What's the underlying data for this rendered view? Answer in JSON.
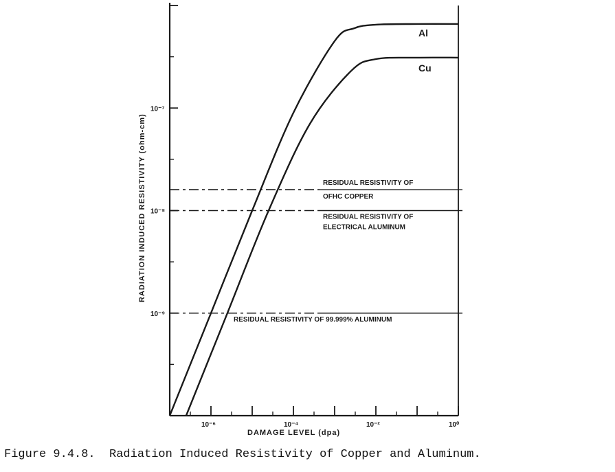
{
  "caption": "Figure 9.4.8.  Radiation Induced Resistivity of Copper and Aluminum.",
  "chart_data": {
    "type": "line",
    "xlabel": "DAMAGE LEVEL (dpa)",
    "ylabel": "RADIATION INDUCED RESISTIVITY (ohm-cm)",
    "x_scale": "log",
    "y_scale": "log",
    "xlim": [
      1e-07,
      1
    ],
    "ylim": [
      1e-10,
      1e-06
    ],
    "x_tick_labels": [
      {
        "value": 1e-06,
        "label": "10⁻⁶"
      },
      {
        "value": 0.0001,
        "label": "10⁻⁴"
      },
      {
        "value": 0.01,
        "label": "10⁻²"
      },
      {
        "value": 1,
        "label": "10⁰"
      }
    ],
    "y_tick_labels": [
      {
        "value": 1e-09,
        "label": "10⁻⁹"
      },
      {
        "value": 1e-08,
        "label": "10⁻⁸"
      },
      {
        "value": 1e-07,
        "label": "10⁻⁷"
      }
    ],
    "series": [
      {
        "name": "Al",
        "color": "#1a1a1a",
        "x": [
          1e-07,
          1e-06,
          1e-05,
          0.0001,
          0.001,
          0.003,
          0.01,
          0.1,
          1
        ],
        "y": [
          1e-10,
          1e-09,
          1e-08,
          9e-08,
          4.5e-07,
          6e-07,
          6.5e-07,
          6.6e-07,
          6.6e-07
        ]
      },
      {
        "name": "Cu",
        "color": "#1a1a1a",
        "x": [
          2.5e-07,
          2.5e-06,
          2.5e-05,
          0.00025,
          0.0025,
          0.01,
          0.1,
          1
        ],
        "y": [
          1e-10,
          1e-09,
          1e-08,
          7e-08,
          2.3e-07,
          3e-07,
          3.1e-07,
          3.1e-07
        ]
      }
    ],
    "reference_lines": [
      {
        "label_line1": "RESIDUAL RESISTIVITY OF",
        "label_line2": "OFHC COPPER",
        "y": 1.6e-08
      },
      {
        "label_line1": "RESIDUAL RESISTIVITY OF",
        "label_line2": "ELECTRICAL ALUMINUM",
        "y": 1e-08
      },
      {
        "label_line1": "RESIDUAL RESISTIVITY OF 99.999% ALUMINUM",
        "label_line2": "",
        "y": 1e-09
      }
    ],
    "grid": false
  }
}
